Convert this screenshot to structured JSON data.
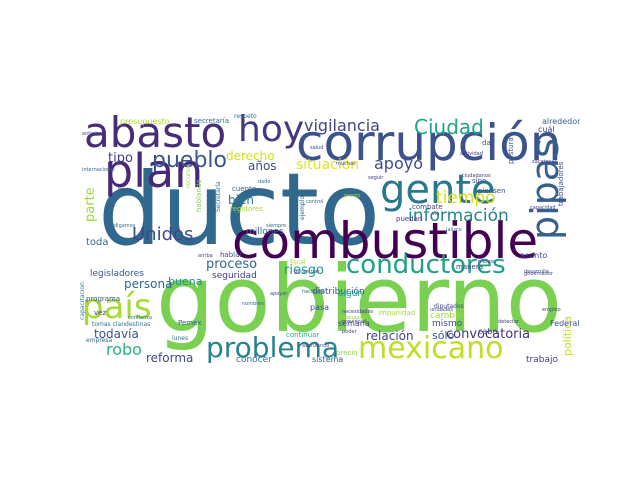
{
  "words": {
    "gobierno": "gobierno",
    "ducto": "ducto",
    "corrupcion": "corrupción",
    "combustible": "combustible",
    "plan": "plan",
    "abasto": "abasto",
    "gente": "gente",
    "hoy": "hoy",
    "mexicano": "mexicano",
    "conductores": "conductores",
    "pipas": "pipas",
    "pais": "país",
    "problema": "problema",
    "pueblo": "pueblo",
    "ciudad": "Ciudad",
    "vigilancia": "vigilancia",
    "informacion": "información",
    "tiempo": "tiempo",
    "apoyo": "apoyo",
    "unidos": "Unidos",
    "robo": "robo",
    "situacion": "situación",
    "convocatoria": "convocatoria",
    "derecho": "derecho",
    "tipo": "tipo",
    "proceso": "proceso",
    "riesgo": "riesgo",
    "reforma": "reforma",
    "bien": "bien",
    "parte": "parte",
    "relacion": "relación",
    "persona": "persona",
    "todavia": "todavía",
    "anos": "años",
    "politica": "política",
    "presupuesto": "presupuesto",
    "alrededor": "alrededor",
    "toda": "toda",
    "buena": "buena",
    "seguridad": "seguridad",
    "cambio": "cambio",
    "mismo": "mismo",
    "solo": "sólo",
    "cabo": "cabo",
    "trabajo": "trabajo",
    "distribucion": "distribución",
    "millones": "millones",
    "conocer": "conocer",
    "sistema": "sistema",
    "semana": "semana",
    "pasa": "pasa",
    "algun": "algún",
    "federal": "Federal",
    "pemex": "Pemex",
    "legisladores": "legisladores",
    "programa": "programa",
    "agenda": "agenda",
    "secretaria": "secretaría",
    "asunto": "asunto",
    "puedan": "puedan",
    "combate": "combate",
    "diputados": "diputados",
    "impunidad": "impunidad",
    "postura": "postura",
    "sino": "sino",
    "respeto": "respeto",
    "oportunidades": "oportunidades",
    "acuerdo": "acuerdo",
    "cual": "cuál",
    "dar": "dar",
    "hablando": "hablando",
    "regidores": "regidores",
    "cuente": "cuente",
    "hablar": "hablar",
    "continuar": "continuar",
    "precio": "precio",
    "lunes": "lunes",
    "empresa": "empresa",
    "tomas": "tomas clandestinas",
    "vez": "vez",
    "confianza": "confianza",
    "capacitacion": "capacitación",
    "trabajadores": "trabajadores",
    "manera": "manera",
    "desarrollo": "desarrollo",
    "piensen": "piensen",
    "capacidad": "capacidad",
    "empleo": "empleo",
    "recurso": "recurso",
    "internacional": "internacional",
    "anticipo": "anticipo",
    "ejemplo": "ejemplo",
    "hacia": "hacia",
    "zacatecas": "zacatecas",
    "secretarias": "Secretaría",
    "guanajuato": "Guanajuato",
    "jalisco": "Jalisco",
    "seguir": "seguir",
    "apoyar": "apoyar",
    "nombres": "nombres",
    "haciendo": "haciendo",
    "pase": "pase",
    "poder": "poder",
    "siempre": "siempre",
    "control": "control",
    "muchas": "muchas",
    "ciudadanos": "ciudadanos",
    "salud": "salud",
    "fiscal": "fiscal",
    "dado": "dado",
    "digamos": "digamos",
    "arriba": "arriba",
    "menos": "menos",
    "via": "vía",
    "actividad": "actividad",
    "garantizar": "garantizar",
    "necesidades": "necesidades",
    "pronto": "pronto",
    "gobernador": "gobernador",
    "unidades": "unidades",
    "derecho2": "detectar",
    "nunca": "nunca",
    "puerto": "puerto",
    "seguir2": "provincial",
    "maxima": "máxima",
    "sector": "sector",
    "avanzando": "avanzando",
    "algo": "algo",
    "causa": "causa",
    "resto": "resto",
    "peso": "peso",
    "bueno": "bueno",
    "grupo": "grupo",
    "ir": "ir",
    "hora": "hora",
    "claro": "claro",
    "mañana": "mañana",
    "fin": "fin",
    "vida": "vida"
  }
}
